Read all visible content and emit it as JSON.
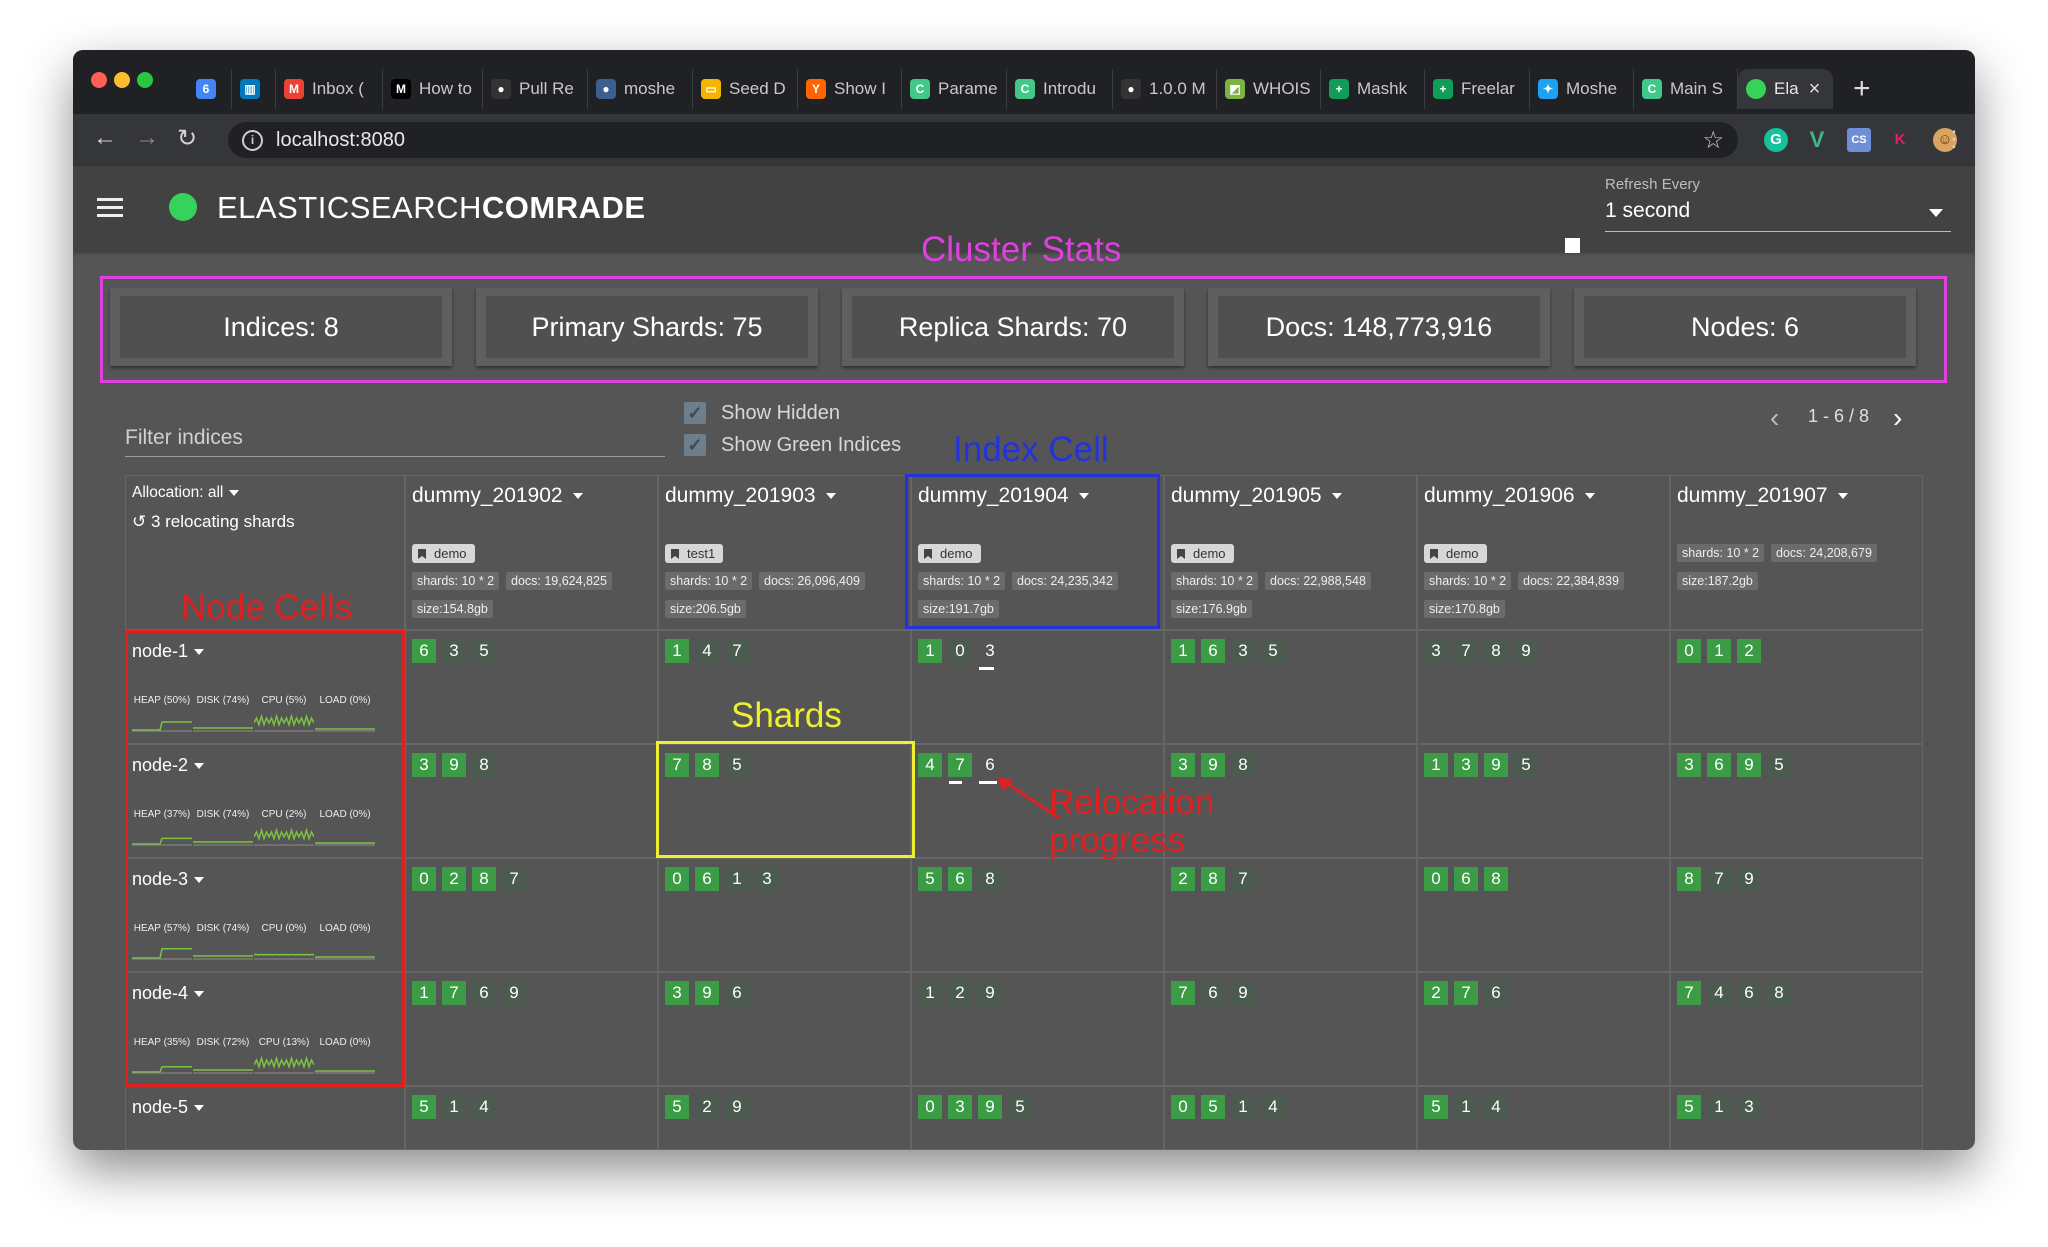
{
  "browser": {
    "tabs": [
      {
        "label": "",
        "icon": "calendar-icon",
        "color": "#4285f4",
        "glyph": "6"
      },
      {
        "label": "",
        "icon": "trello-icon",
        "color": "#0079bf",
        "glyph": "▥"
      },
      {
        "label": "Inbox (",
        "icon": "gmail-icon",
        "color": "#ea4335",
        "glyph": "M"
      },
      {
        "label": "How to",
        "icon": "medium-icon",
        "color": "#000000",
        "glyph": "M"
      },
      {
        "label": "Pull Re",
        "icon": "github-icon",
        "color": "#333333",
        "glyph": "●"
      },
      {
        "label": "moshe",
        "icon": "profile-icon",
        "color": "#3b5f8f",
        "glyph": "●"
      },
      {
        "label": "Seed D",
        "icon": "slides-icon",
        "color": "#f4b400",
        "glyph": "▭"
      },
      {
        "label": "Show I",
        "icon": "hackernews-icon",
        "color": "#ff6600",
        "glyph": "Y"
      },
      {
        "label": "Parame",
        "icon": "comrade-icon",
        "color": "#42c98a",
        "glyph": "C"
      },
      {
        "label": "Introdu",
        "icon": "comrade-icon",
        "color": "#42c98a",
        "glyph": "C"
      },
      {
        "label": "1.0.0 M",
        "icon": "github-icon",
        "color": "#333333",
        "glyph": "●"
      },
      {
        "label": "WHOIS",
        "icon": "whois-icon",
        "color": "#7cb342",
        "glyph": "◩"
      },
      {
        "label": "Mashk",
        "icon": "sheets-icon",
        "color": "#0f9d58",
        "glyph": "+"
      },
      {
        "label": "Freelar",
        "icon": "sheets-icon",
        "color": "#0f9d58",
        "glyph": "+"
      },
      {
        "label": "Moshe",
        "icon": "twitter-icon",
        "color": "#1da1f2",
        "glyph": "✦"
      },
      {
        "label": "Main S",
        "icon": "comrade-icon",
        "color": "#42c98a",
        "glyph": "C"
      },
      {
        "label": "Ela",
        "icon": "active-green-dot-icon",
        "color": "#35d35a",
        "glyph": "",
        "active": true
      }
    ],
    "url": "localhost:8080"
  },
  "app": {
    "brand_light": "ELASTICSEARCH",
    "brand_bold": "COMRADE",
    "refresh_label": "Refresh Every",
    "refresh_value": "1 second"
  },
  "annotations": {
    "cluster_stats": "Cluster Stats",
    "index_cell": "Index Cell",
    "node_cells": "Node Cells",
    "shards": "Shards",
    "relocation": "Relocation progress"
  },
  "stats": [
    {
      "label": "Indices: 8"
    },
    {
      "label": "Primary Shards: 75"
    },
    {
      "label": "Replica Shards: 70"
    },
    {
      "label": "Docs: 148,773,916"
    },
    {
      "label": "Nodes: 6"
    }
  ],
  "filter": {
    "placeholder": "Filter indices"
  },
  "checkboxes": [
    {
      "label": "Show Hidden",
      "checked": true
    },
    {
      "label": "Show Green Indices",
      "checked": true
    }
  ],
  "pager": {
    "text": "1 - 6 / 8"
  },
  "corner": {
    "allocation": "Allocation: all",
    "relocating": "3 relocating shards"
  },
  "indices": [
    {
      "name": "dummy_201902",
      "tag": "demo",
      "shards": "shards: 10 * 2",
      "docs": "docs: 19,624,825",
      "size": "size:154.8gb"
    },
    {
      "name": "dummy_201903",
      "tag": "test1",
      "shards": "shards: 10 * 2",
      "docs": "docs: 26,096,409",
      "size": "size:206.5gb"
    },
    {
      "name": "dummy_201904",
      "tag": "demo",
      "shards": "shards: 10 * 2",
      "docs": "docs: 24,235,342",
      "size": "size:191.7gb"
    },
    {
      "name": "dummy_201905",
      "tag": "demo",
      "shards": "shards: 10 * 2",
      "docs": "docs: 22,988,548",
      "size": "size:176.9gb"
    },
    {
      "name": "dummy_201906",
      "tag": "demo",
      "shards": "shards: 10 * 2",
      "docs": "docs: 22,384,839",
      "size": "size:170.8gb"
    },
    {
      "name": "dummy_201907",
      "tag": "",
      "shards": "shards: 10 * 2",
      "docs": "docs: 24,208,679",
      "size": "size:187.2gb"
    }
  ],
  "nodes": [
    {
      "name": "node-1",
      "metrics": [
        {
          "label": "HEAP (50%)",
          "value": 0.5
        },
        {
          "label": "DISK (74%)",
          "value": 0.74
        },
        {
          "label": "CPU (5%)",
          "value": 0.05
        },
        {
          "label": "LOAD (0%)",
          "value": 0
        }
      ]
    },
    {
      "name": "node-2",
      "metrics": [
        {
          "label": "HEAP (37%)",
          "value": 0.37
        },
        {
          "label": "DISK (74%)",
          "value": 0.74
        },
        {
          "label": "CPU (2%)",
          "value": 0.02
        },
        {
          "label": "LOAD (0%)",
          "value": 0
        }
      ]
    },
    {
      "name": "node-3",
      "metrics": [
        {
          "label": "HEAP (57%)",
          "value": 0.57
        },
        {
          "label": "DISK (74%)",
          "value": 0.74
        },
        {
          "label": "CPU (0%)",
          "value": 0
        },
        {
          "label": "LOAD (0%)",
          "value": 0
        }
      ]
    },
    {
      "name": "node-4",
      "metrics": [
        {
          "label": "HEAP (35%)",
          "value": 0.35
        },
        {
          "label": "DISK (72%)",
          "value": 0.72
        },
        {
          "label": "CPU (13%)",
          "value": 0.13
        },
        {
          "label": "LOAD (0%)",
          "value": 0
        }
      ]
    },
    {
      "name": "node-5",
      "metrics": []
    }
  ],
  "shards": [
    [
      [
        {
          "n": "6",
          "t": "p"
        },
        {
          "n": "3",
          "t": "r"
        },
        {
          "n": "5",
          "t": "r"
        }
      ],
      [
        {
          "n": "1",
          "t": "p"
        },
        {
          "n": "4",
          "t": "r"
        },
        {
          "n": "7",
          "t": "r"
        }
      ],
      [
        {
          "n": "1",
          "t": "p"
        },
        {
          "n": "0",
          "t": "r"
        },
        {
          "n": "3",
          "t": "x",
          "progress": 0.7
        }
      ],
      [
        {
          "n": "1",
          "t": "p"
        },
        {
          "n": "6",
          "t": "p"
        },
        {
          "n": "3",
          "t": "r"
        },
        {
          "n": "5",
          "t": "r"
        }
      ],
      [
        {
          "n": "3",
          "t": "r"
        },
        {
          "n": "7",
          "t": "r"
        },
        {
          "n": "8",
          "t": "r"
        },
        {
          "n": "9",
          "t": "r"
        }
      ],
      [
        {
          "n": "0",
          "t": "p"
        },
        {
          "n": "1",
          "t": "p"
        },
        {
          "n": "2",
          "t": "p"
        }
      ]
    ],
    [
      [
        {
          "n": "3",
          "t": "p"
        },
        {
          "n": "9",
          "t": "p"
        },
        {
          "n": "8",
          "t": "r"
        }
      ],
      [
        {
          "n": "7",
          "t": "p"
        },
        {
          "n": "8",
          "t": "p"
        },
        {
          "n": "5",
          "t": "r"
        }
      ],
      [
        {
          "n": "4",
          "t": "p"
        },
        {
          "n": "7",
          "t": "p",
          "progress": 0.6
        },
        {
          "n": "6",
          "t": "x",
          "progress": 0.8
        }
      ],
      [
        {
          "n": "3",
          "t": "p"
        },
        {
          "n": "9",
          "t": "p"
        },
        {
          "n": "8",
          "t": "r"
        }
      ],
      [
        {
          "n": "1",
          "t": "p"
        },
        {
          "n": "3",
          "t": "p"
        },
        {
          "n": "9",
          "t": "p"
        },
        {
          "n": "5",
          "t": "r"
        }
      ],
      [
        {
          "n": "3",
          "t": "p"
        },
        {
          "n": "6",
          "t": "p"
        },
        {
          "n": "9",
          "t": "p"
        },
        {
          "n": "5",
          "t": "r"
        }
      ]
    ],
    [
      [
        {
          "n": "0",
          "t": "p"
        },
        {
          "n": "2",
          "t": "p"
        },
        {
          "n": "8",
          "t": "p"
        },
        {
          "n": "7",
          "t": "r"
        }
      ],
      [
        {
          "n": "0",
          "t": "p"
        },
        {
          "n": "6",
          "t": "p"
        },
        {
          "n": "1",
          "t": "r"
        },
        {
          "n": "3",
          "t": "r"
        }
      ],
      [
        {
          "n": "5",
          "t": "p"
        },
        {
          "n": "6",
          "t": "p"
        },
        {
          "n": "8",
          "t": "r"
        }
      ],
      [
        {
          "n": "2",
          "t": "p"
        },
        {
          "n": "8",
          "t": "p"
        },
        {
          "n": "7",
          "t": "r"
        }
      ],
      [
        {
          "n": "0",
          "t": "p"
        },
        {
          "n": "6",
          "t": "p"
        },
        {
          "n": "8",
          "t": "p"
        }
      ],
      [
        {
          "n": "8",
          "t": "p"
        },
        {
          "n": "7",
          "t": "r"
        },
        {
          "n": "9",
          "t": "r"
        }
      ]
    ],
    [
      [
        {
          "n": "1",
          "t": "p"
        },
        {
          "n": "7",
          "t": "p"
        },
        {
          "n": "6",
          "t": "r"
        },
        {
          "n": "9",
          "t": "r"
        }
      ],
      [
        {
          "n": "3",
          "t": "p"
        },
        {
          "n": "9",
          "t": "p"
        },
        {
          "n": "6",
          "t": "r"
        }
      ],
      [
        {
          "n": "1",
          "t": "r"
        },
        {
          "n": "2",
          "t": "r"
        },
        {
          "n": "9",
          "t": "r"
        }
      ],
      [
        {
          "n": "7",
          "t": "p"
        },
        {
          "n": "6",
          "t": "r"
        },
        {
          "n": "9",
          "t": "r"
        }
      ],
      [
        {
          "n": "2",
          "t": "p"
        },
        {
          "n": "7",
          "t": "p"
        },
        {
          "n": "6",
          "t": "r"
        }
      ],
      [
        {
          "n": "7",
          "t": "p"
        },
        {
          "n": "4",
          "t": "r"
        },
        {
          "n": "6",
          "t": "r"
        },
        {
          "n": "8",
          "t": "r"
        }
      ]
    ],
    [
      [
        {
          "n": "5",
          "t": "p"
        },
        {
          "n": "1",
          "t": "r"
        },
        {
          "n": "4",
          "t": "r"
        }
      ],
      [
        {
          "n": "5",
          "t": "p"
        },
        {
          "n": "2",
          "t": "r"
        },
        {
          "n": "9",
          "t": "r"
        }
      ],
      [
        {
          "n": "0",
          "t": "p"
        },
        {
          "n": "3",
          "t": "p"
        },
        {
          "n": "9",
          "t": "p"
        },
        {
          "n": "5",
          "t": "r"
        }
      ],
      [
        {
          "n": "0",
          "t": "p"
        },
        {
          "n": "5",
          "t": "p"
        },
        {
          "n": "1",
          "t": "r"
        },
        {
          "n": "4",
          "t": "r"
        }
      ],
      [
        {
          "n": "5",
          "t": "p"
        },
        {
          "n": "1",
          "t": "r"
        },
        {
          "n": "4",
          "t": "r"
        }
      ],
      [
        {
          "n": "5",
          "t": "p"
        },
        {
          "n": "1",
          "t": "r"
        },
        {
          "n": "3",
          "t": "r"
        }
      ]
    ]
  ],
  "colors": {
    "primary_shard": "#3c9c46",
    "replica_shard": "#4b5b50",
    "status_green": "#35d35a",
    "annotation_magenta": "#e040e0",
    "annotation_blue": "#2233dd",
    "annotation_red": "#e02020",
    "annotation_yellow": "#eeee33",
    "sparkline": "#7cc242"
  }
}
